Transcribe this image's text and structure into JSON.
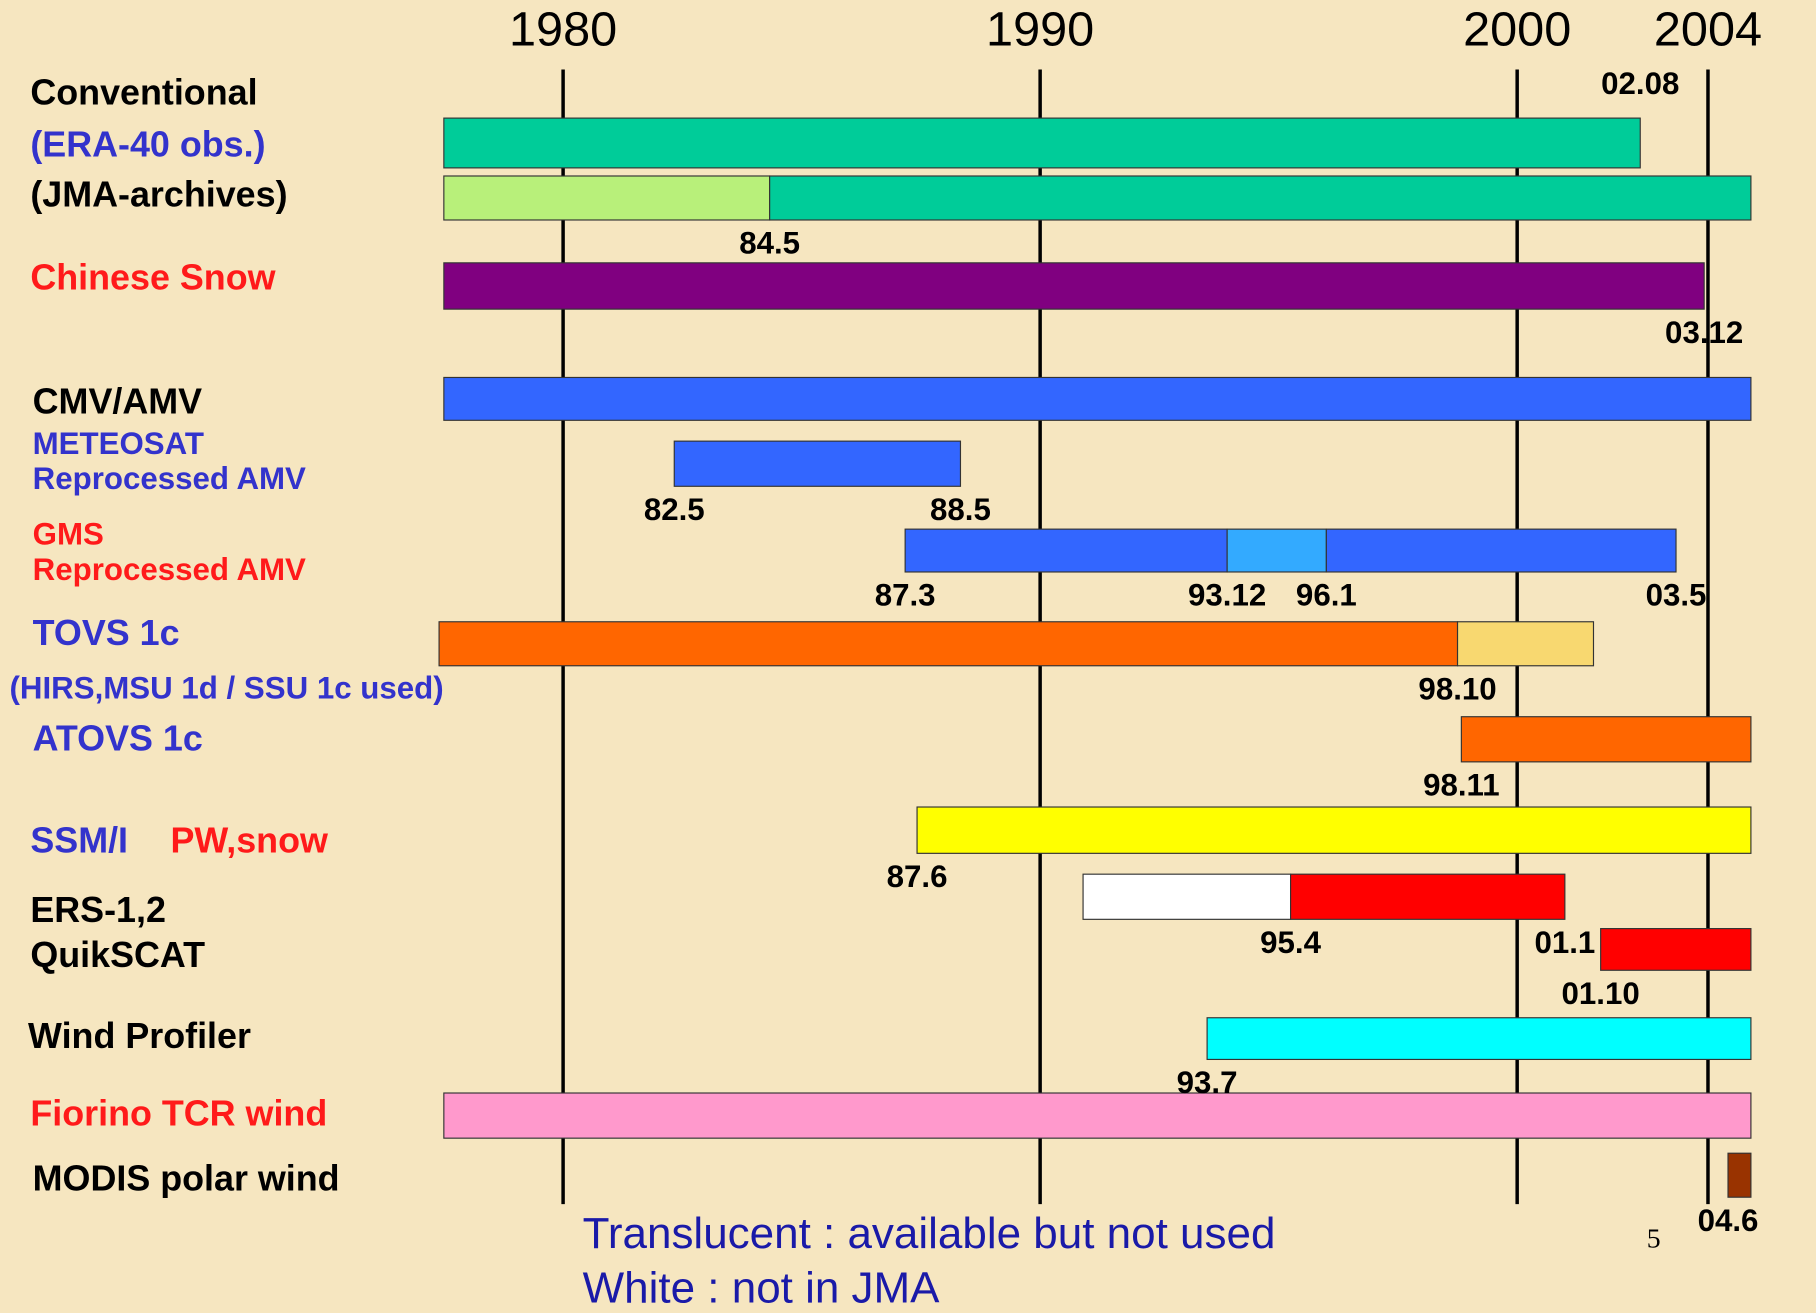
{
  "chart_data": {
    "type": "timeline",
    "xlim": [
      1977.4,
      2004.9
    ],
    "xticks": [
      1980,
      1990,
      2000,
      2004
    ],
    "grid": true,
    "labels": [
      "Conventional",
      "(ERA-40 obs.)",
      "(JMA-archives)",
      "Chinese Snow",
      "CMV/AMV",
      "METEOSAT",
      "Reprocessed AMV",
      "GMS",
      "Reprocessed AMV",
      "TOVS 1c",
      "(HIRS,MSU 1d / SSU 1c used)",
      "ATOVS 1c",
      "SSM/I",
      "PW,snow",
      "ERS-1,2",
      "QuikSCAT",
      "Wind Profiler",
      "Fiorino TCR wind",
      "MODIS polar wind"
    ],
    "bars": [
      {
        "segments": [
          {
            "start": 1977.5,
            "end": 2002.58,
            "color": "#00cc99",
            "end_label": "02.08"
          }
        ]
      },
      {
        "segments": [
          {
            "start": 1977.5,
            "end": 1984.33,
            "color": "#b8f07a"
          },
          {
            "start": 1984.33,
            "end": 2004.9,
            "color": "#00cc99",
            "start_label": "84.5"
          }
        ]
      },
      {
        "segments": [
          {
            "start": 1977.5,
            "end": 2003.92,
            "color": "#800080",
            "end_label": "03.12"
          }
        ]
      },
      {
        "segments": [
          {
            "start": 1977.5,
            "end": 2004.9,
            "color": "#3366ff"
          }
        ]
      },
      {
        "segments": [
          {
            "start": 1982.33,
            "end": 1988.33,
            "color": "#3366ff",
            "start_label": "82.5",
            "end_label": "88.5"
          }
        ]
      },
      {
        "segments": [
          {
            "start": 1987.17,
            "end": 1993.92,
            "color": "#3366ff",
            "start_label": "87.3"
          },
          {
            "start": 1993.92,
            "end": 1996.0,
            "color": "#33aaff",
            "start_label": "93.12",
            "end_label": "96.1"
          },
          {
            "start": 1996.0,
            "end": 2003.33,
            "color": "#3366ff",
            "end_label": "03.5"
          }
        ]
      },
      {
        "segments": [
          {
            "start": 1977.4,
            "end": 1998.75,
            "color": "#ff6600",
            "end_label": "98.10"
          },
          {
            "start": 1998.75,
            "end": 2001.6,
            "color": "#f8d870"
          }
        ]
      },
      {
        "segments": [
          {
            "start": 1998.83,
            "end": 2004.9,
            "color": "#ff6600",
            "start_label": "98.11"
          }
        ]
      },
      {
        "segments": [
          {
            "start": 1987.42,
            "end": 2004.9,
            "color": "#ffff00",
            "start_label": "87.6"
          }
        ]
      },
      {
        "segments": [
          {
            "start": 1990.9,
            "end": 1995.25,
            "color": "#ffffff"
          },
          {
            "start": 1995.25,
            "end": 2001.0,
            "color": "#ff0000",
            "start_label": "95.4",
            "end_label": "01.1"
          }
        ]
      },
      {
        "segments": [
          {
            "start": 2001.75,
            "end": 2004.9,
            "color": "#ff0000",
            "start_label": "01.10"
          }
        ]
      },
      {
        "segments": [
          {
            "start": 1993.5,
            "end": 2004.9,
            "color": "#00ffff",
            "start_label": "93.7"
          }
        ]
      },
      {
        "segments": [
          {
            "start": 1977.5,
            "end": 2004.9,
            "color": "#ff99cc"
          }
        ]
      },
      {
        "segments": [
          {
            "start": 2004.42,
            "end": 2004.9,
            "color": "#993300",
            "start_label": "04.6"
          }
        ]
      }
    ],
    "notes": [
      "Translucent : available but not used",
      "White : not in JMA"
    ],
    "page_number": "5"
  }
}
